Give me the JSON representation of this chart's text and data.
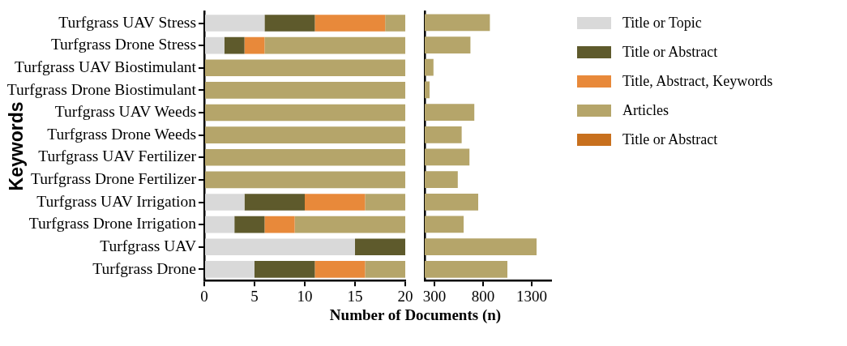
{
  "chart_data": [
    {
      "type": "bar",
      "orientation": "horizontal",
      "stacked": true,
      "ylabel": "Keywords",
      "xlabel": "Number of Documents (n)",
      "categories": [
        "Turfgrass UAV Stress",
        "Turfgrass Drone Stress",
        "Turfgrass UAV Biostimulant",
        "Turfgrass Drone Biostimulant",
        "Turfgrass UAV Weeds",
        "Turfgrass Drone Weeds",
        "Turfgrass UAV Fertilizer",
        "Turfgrass Drone Fertilizer",
        "Turfgrass UAV Irrigation",
        "Turfgrass Drone Irrigation",
        "Turfgrass UAV",
        "Turfgrass Drone"
      ],
      "series": [
        {
          "color": "#d9d9d9",
          "values": [
            6,
            2,
            null,
            null,
            null,
            null,
            null,
            null,
            4,
            3,
            15,
            5
          ]
        },
        {
          "color": "#5e5a2c",
          "values": [
            5,
            2,
            null,
            null,
            null,
            null,
            null,
            null,
            6,
            3,
            5,
            6
          ]
        },
        {
          "color": "#e8893a",
          "values": [
            7,
            2,
            null,
            null,
            null,
            null,
            null,
            null,
            6,
            3,
            null,
            5
          ]
        },
        {
          "color": "#b5a56a",
          "values": [
            2,
            14,
            20,
            20,
            20,
            20,
            20,
            20,
            4,
            11,
            null,
            4
          ]
        }
      ],
      "xlim": [
        0,
        20
      ],
      "xticks": [
        0,
        5,
        10,
        15,
        20
      ]
    },
    {
      "type": "bar",
      "orientation": "horizontal",
      "stacked": true,
      "tick_labels": "x",
      "legend": "right",
      "categories": [
        null,
        null,
        null,
        null,
        null,
        null,
        null,
        null,
        null,
        null,
        null,
        null
      ],
      "series": [
        {
          "name": "Title or Topic",
          "color": "#d9d9d9",
          "values": [
            null,
            null,
            null,
            null,
            null,
            null,
            null,
            null,
            null,
            null,
            null,
            null
          ]
        },
        {
          "name": "Title or Abstract",
          "color": "#5e5a2c",
          "values": [
            null,
            null,
            null,
            null,
            null,
            null,
            null,
            null,
            null,
            null,
            null,
            null
          ]
        },
        {
          "name": "Title, Abstract, Keywords",
          "color": "#e8893a",
          "values": [
            null,
            null,
            null,
            null,
            null,
            null,
            null,
            null,
            null,
            null,
            null,
            null
          ]
        },
        {
          "name": "Articles",
          "color": "#b5a56a",
          "values": [
            870,
            670,
            290,
            250,
            710,
            580,
            660,
            540,
            750,
            600,
            1350,
            1050
          ]
        },
        {
          "name": "Title or Abstract",
          "color": "#c8701e",
          "values": [
            null,
            null,
            null,
            null,
            null,
            null,
            null,
            null,
            null,
            null,
            null,
            null
          ]
        }
      ],
      "xlim": [
        200,
        1500
      ],
      "xticks": [
        300,
        800,
        1300
      ]
    }
  ]
}
